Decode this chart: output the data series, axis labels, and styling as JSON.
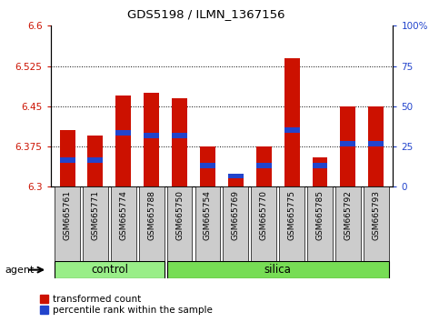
{
  "title": "GDS5198 / ILMN_1367156",
  "samples": [
    "GSM665761",
    "GSM665771",
    "GSM665774",
    "GSM665788",
    "GSM665750",
    "GSM665754",
    "GSM665769",
    "GSM665770",
    "GSM665775",
    "GSM665785",
    "GSM665792",
    "GSM665793"
  ],
  "red_values": [
    6.405,
    6.395,
    6.47,
    6.475,
    6.465,
    6.375,
    6.325,
    6.375,
    6.54,
    6.355,
    6.45,
    6.45
  ],
  "blue_values": [
    6.345,
    6.345,
    6.395,
    6.39,
    6.39,
    6.335,
    6.315,
    6.335,
    6.4,
    6.335,
    6.375,
    6.375
  ],
  "base_value": 6.3,
  "ylim_left": [
    6.3,
    6.6
  ],
  "ylim_right": [
    0,
    100
  ],
  "yticks_left": [
    6.3,
    6.375,
    6.45,
    6.525,
    6.6
  ],
  "ytick_labels_left": [
    "6.3",
    "6.375",
    "6.45",
    "6.525",
    "6.6"
  ],
  "yticks_right": [
    0,
    25,
    50,
    75,
    100
  ],
  "ytick_labels_right": [
    "0",
    "25",
    "50",
    "75",
    "100%"
  ],
  "red_color": "#cc1100",
  "blue_color": "#2244cc",
  "control_color": "#99ee88",
  "silica_color": "#77dd55",
  "xticklabel_bg": "#cccccc",
  "bar_width": 0.55,
  "blue_bar_height": 0.01,
  "legend_items": [
    "transformed count",
    "percentile rank within the sample"
  ],
  "agent_label": "agent",
  "group_label_control": "control",
  "group_label_silica": "silica",
  "n_control": 4,
  "n_silica": 8
}
